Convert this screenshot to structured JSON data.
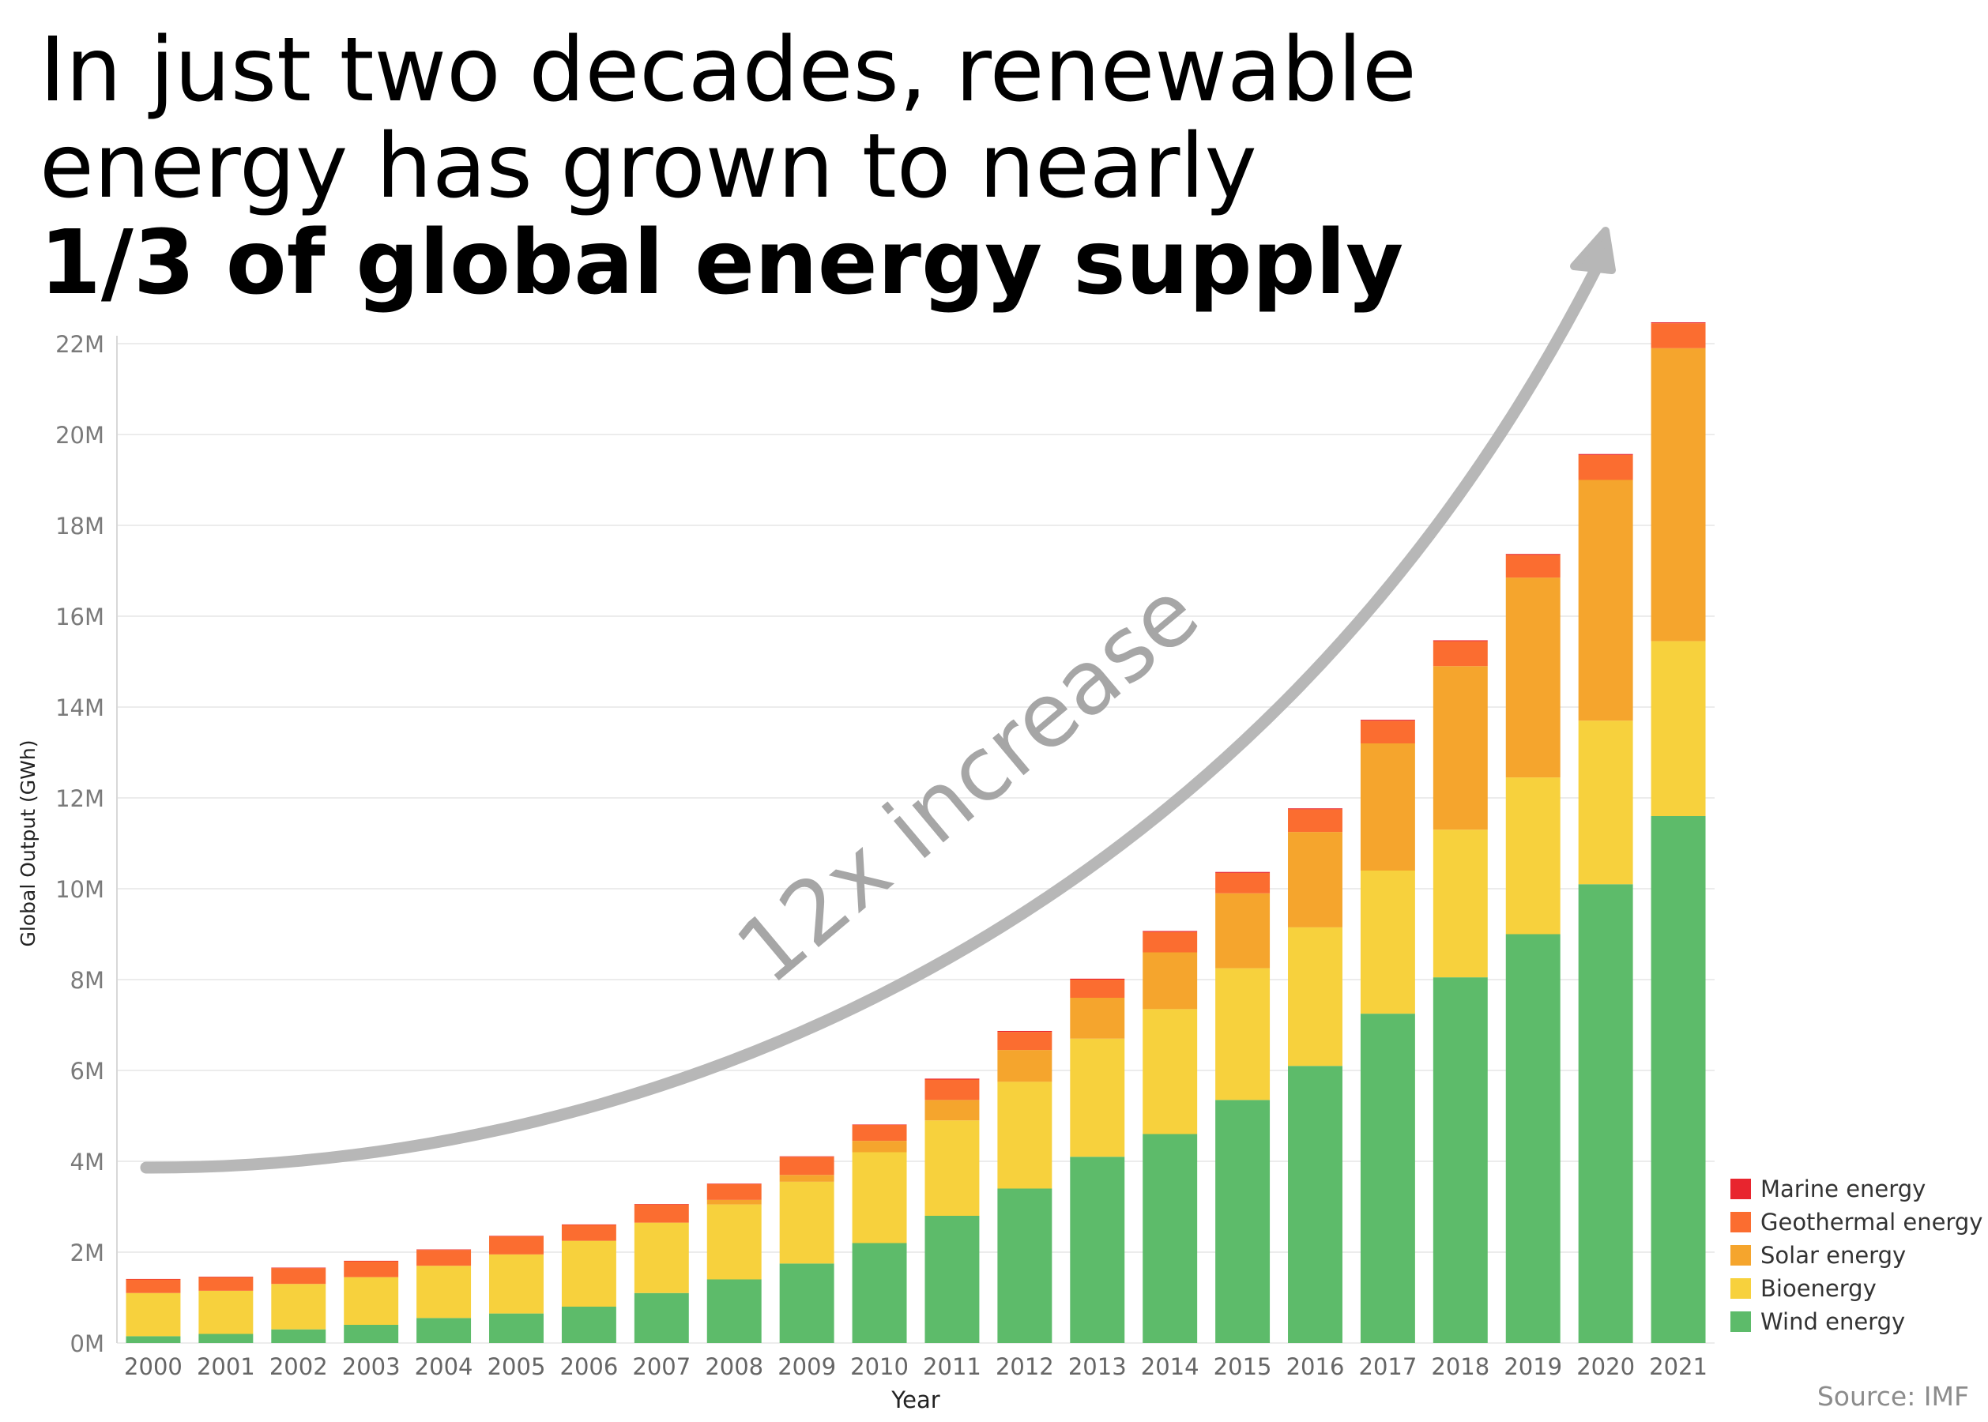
{
  "header": {
    "line1": "In just two decades, renewable",
    "line2": "energy has grown to nearly",
    "line3": "1/3 of global energy supply"
  },
  "annotation": {
    "text": "12x increase"
  },
  "source": "Source: IMF",
  "chart_data": {
    "type": "bar",
    "stacked": true,
    "xlabel": "Year",
    "ylabel": "Global Output (GWh)",
    "ylim": [
      0,
      22000000
    ],
    "yticks": [
      "0M",
      "2M",
      "4M",
      "6M",
      "8M",
      "10M",
      "12M",
      "14M",
      "16M",
      "18M",
      "20M",
      "22M"
    ],
    "ytick_values": [
      0,
      2000000,
      4000000,
      6000000,
      8000000,
      10000000,
      12000000,
      14000000,
      16000000,
      18000000,
      20000000,
      22000000
    ],
    "grid": true,
    "legend_position": "bottom-right",
    "categories": [
      "2000",
      "2001",
      "2002",
      "2003",
      "2004",
      "2005",
      "2006",
      "2007",
      "2008",
      "2009",
      "2010",
      "2011",
      "2012",
      "2013",
      "2014",
      "2015",
      "2016",
      "2017",
      "2018",
      "2019",
      "2020",
      "2021"
    ],
    "series": [
      {
        "name": "Wind energy",
        "color": "#5dbb6a",
        "values": [
          150000,
          200000,
          300000,
          400000,
          550000,
          650000,
          800000,
          1100000,
          1400000,
          1750000,
          2200000,
          2800000,
          3400000,
          4100000,
          4600000,
          5350000,
          6100000,
          7250000,
          8050000,
          9000000,
          10100000,
          11600000
        ]
      },
      {
        "name": "Bioenergy",
        "color": "#f7d13d",
        "values": [
          950000,
          950000,
          1000000,
          1050000,
          1150000,
          1300000,
          1450000,
          1550000,
          1650000,
          1800000,
          2000000,
          2100000,
          2350000,
          2600000,
          2750000,
          2900000,
          3050000,
          3150000,
          3250000,
          3450000,
          3600000,
          3850000
        ]
      },
      {
        "name": "Solar energy",
        "color": "#f5a52d",
        "values": [
          0,
          0,
          0,
          0,
          0,
          0,
          0,
          0,
          100000,
          150000,
          250000,
          450000,
          700000,
          900000,
          1250000,
          1650000,
          2100000,
          2800000,
          3600000,
          4400000,
          5300000,
          6450000
        ]
      },
      {
        "name": "Geothermal energy",
        "color": "#fb6d30",
        "values": [
          300000,
          300000,
          350000,
          350000,
          350000,
          400000,
          350000,
          400000,
          350000,
          400000,
          350000,
          450000,
          400000,
          400000,
          450000,
          450000,
          500000,
          500000,
          550000,
          500000,
          550000,
          550000
        ]
      },
      {
        "name": "Marine energy",
        "color": "#e8252e",
        "values": [
          10000,
          10000,
          10000,
          10000,
          10000,
          10000,
          10000,
          10000,
          10000,
          10000,
          10000,
          20000,
          20000,
          20000,
          20000,
          20000,
          20000,
          20000,
          20000,
          20000,
          20000,
          20000
        ]
      }
    ],
    "legend_order": [
      "Marine energy",
      "Geothermal energy",
      "Solar energy",
      "Bioenergy",
      "Wind energy"
    ]
  }
}
